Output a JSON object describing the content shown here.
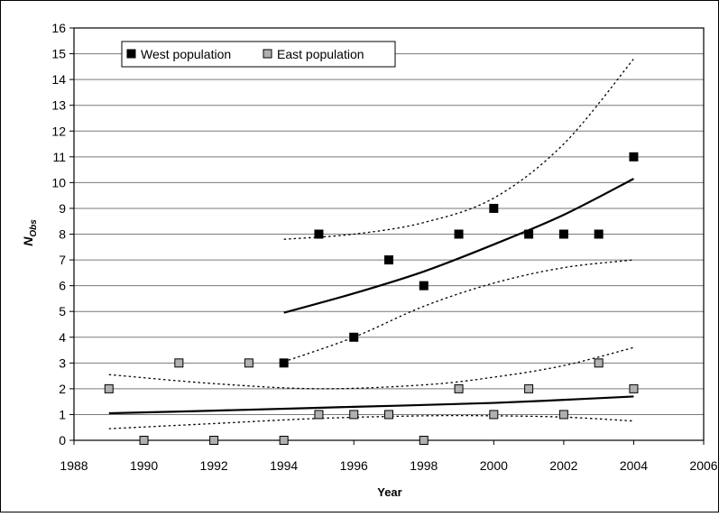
{
  "chart_data": {
    "type": "scatter",
    "title": "",
    "xlabel": "Year",
    "ylabel_main": "N",
    "ylabel_sub": "Obs",
    "xlim": [
      1988,
      2006
    ],
    "ylim": [
      0,
      16
    ],
    "x_ticks": [
      1988,
      1990,
      1992,
      1994,
      1996,
      1998,
      2000,
      2002,
      2004,
      2006
    ],
    "y_ticks": [
      0,
      1,
      2,
      3,
      4,
      5,
      6,
      7,
      8,
      9,
      10,
      11,
      12,
      13,
      14,
      15,
      16
    ],
    "grid": true,
    "legend_position": "top-left",
    "series": [
      {
        "name": "West population",
        "color": "#000000",
        "marker": "square",
        "points": [
          [
            1994,
            3
          ],
          [
            1995,
            8
          ],
          [
            1996,
            4
          ],
          [
            1997,
            7
          ],
          [
            1998,
            6
          ],
          [
            1999,
            8
          ],
          [
            2000,
            9
          ],
          [
            2001,
            8
          ],
          [
            2002,
            8
          ],
          [
            2003,
            8
          ],
          [
            2004,
            11
          ]
        ],
        "fit": [
          [
            1994,
            4.95
          ],
          [
            1996,
            5.7
          ],
          [
            1998,
            6.55
          ],
          [
            2000,
            7.6
          ],
          [
            2002,
            8.75
          ],
          [
            2004,
            10.15
          ]
        ],
        "ci_upper": [
          [
            1994,
            7.8
          ],
          [
            1996,
            8.0
          ],
          [
            1998,
            8.45
          ],
          [
            2000,
            9.4
          ],
          [
            2002,
            11.5
          ],
          [
            2004,
            14.8
          ]
        ],
        "ci_lower": [
          [
            1994,
            3.05
          ],
          [
            1996,
            4.0
          ],
          [
            1998,
            5.2
          ],
          [
            2000,
            6.1
          ],
          [
            2002,
            6.7
          ],
          [
            2004,
            7.0
          ]
        ]
      },
      {
        "name": "East population",
        "color": "#b0b0b0",
        "marker": "square",
        "points": [
          [
            1989,
            2
          ],
          [
            1990,
            0
          ],
          [
            1991,
            3
          ],
          [
            1992,
            0
          ],
          [
            1993,
            3
          ],
          [
            1994,
            0
          ],
          [
            1995,
            1
          ],
          [
            1996,
            1
          ],
          [
            1997,
            1
          ],
          [
            1998,
            0
          ],
          [
            1999,
            2
          ],
          [
            2000,
            1
          ],
          [
            2001,
            2
          ],
          [
            2002,
            1
          ],
          [
            2003,
            3
          ],
          [
            2004,
            2
          ]
        ],
        "fit": [
          [
            1989,
            1.05
          ],
          [
            1992,
            1.15
          ],
          [
            1996,
            1.3
          ],
          [
            2000,
            1.45
          ],
          [
            2004,
            1.7
          ]
        ],
        "ci_upper": [
          [
            1989,
            2.55
          ],
          [
            1992,
            2.2
          ],
          [
            1995,
            2.0
          ],
          [
            1998,
            2.15
          ],
          [
            2000,
            2.45
          ],
          [
            2002,
            2.9
          ],
          [
            2004,
            3.6
          ]
        ],
        "ci_lower": [
          [
            1989,
            0.45
          ],
          [
            1992,
            0.65
          ],
          [
            1995,
            0.85
          ],
          [
            1998,
            0.95
          ],
          [
            2000,
            0.95
          ],
          [
            2002,
            0.9
          ],
          [
            2004,
            0.75
          ]
        ]
      }
    ]
  }
}
